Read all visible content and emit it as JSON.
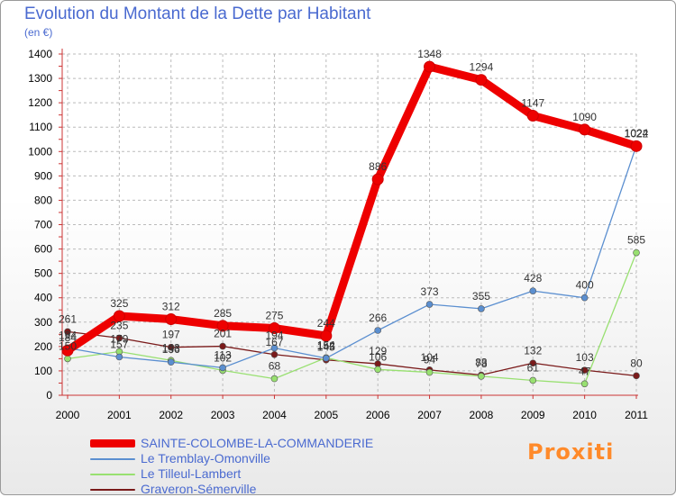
{
  "title": "Evolution du Montant de la Dette par Habitant",
  "subtitle": "(en €)",
  "brand": "Proxiti",
  "chart_data": {
    "type": "line",
    "x": [
      "2000",
      "2001",
      "2002",
      "2003",
      "2004",
      "2005",
      "2006",
      "2007",
      "2008",
      "2009",
      "2010",
      "2011"
    ],
    "yticks": [
      0,
      100,
      200,
      300,
      400,
      500,
      600,
      700,
      800,
      900,
      1000,
      1100,
      1200,
      1300,
      1400
    ],
    "ylim": [
      0,
      1400
    ],
    "grid": true,
    "legend_position": "bottom-left",
    "series": [
      {
        "name": "SAINTE-COLOMBE-LA-COMMANDERIE",
        "color": "#ee0000",
        "values": [
          184,
          325,
          312,
          285,
          275,
          244,
          886,
          1348,
          1294,
          1147,
          1090,
          1022
        ]
      },
      {
        "name": "Le Tremblay-Omonville",
        "color": "#5b8fd0",
        "values": [
          194,
          157,
          136,
          113,
          194,
          152,
          266,
          373,
          355,
          428,
          400,
          1024
        ]
      },
      {
        "name": "Le Tilleul-Lambert",
        "color": "#98e070",
        "values": [
          150,
          179,
          143,
          102,
          68,
          154,
          106,
          94,
          78,
          61,
          47,
          585
        ]
      },
      {
        "name": "Graveron-Sémerville",
        "color": "#7a1a1a",
        "values": [
          261,
          235,
          197,
          201,
          167,
          145,
          129,
          104,
          83,
          132,
          103,
          80
        ]
      }
    ]
  }
}
